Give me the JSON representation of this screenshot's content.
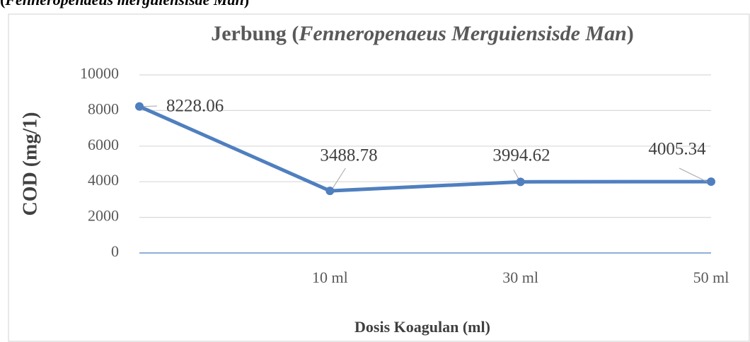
{
  "header": {
    "parts": [
      "(",
      "Fenneropenaeus merguiensisde Man",
      ")"
    ]
  },
  "chart_data": {
    "type": "line",
    "title_parts": [
      "Jerbung (",
      "Fenneropenaeus Merguiensisde Man",
      ")"
    ],
    "y_label": "COD (mg/1)",
    "x_label": "Dosis Koagulan (ml)",
    "categories": [
      null,
      "10 ml",
      "30 ml",
      "50 ml"
    ],
    "series": [
      {
        "name": "COD",
        "color": "#4f7fbf",
        "values": [
          8228.06,
          3488.78,
          3994.62,
          4005.34
        ]
      }
    ],
    "ylim": [
      0,
      10000
    ],
    "yticks": [
      0,
      2000,
      4000,
      6000,
      8000,
      10000
    ],
    "grid": true
  }
}
